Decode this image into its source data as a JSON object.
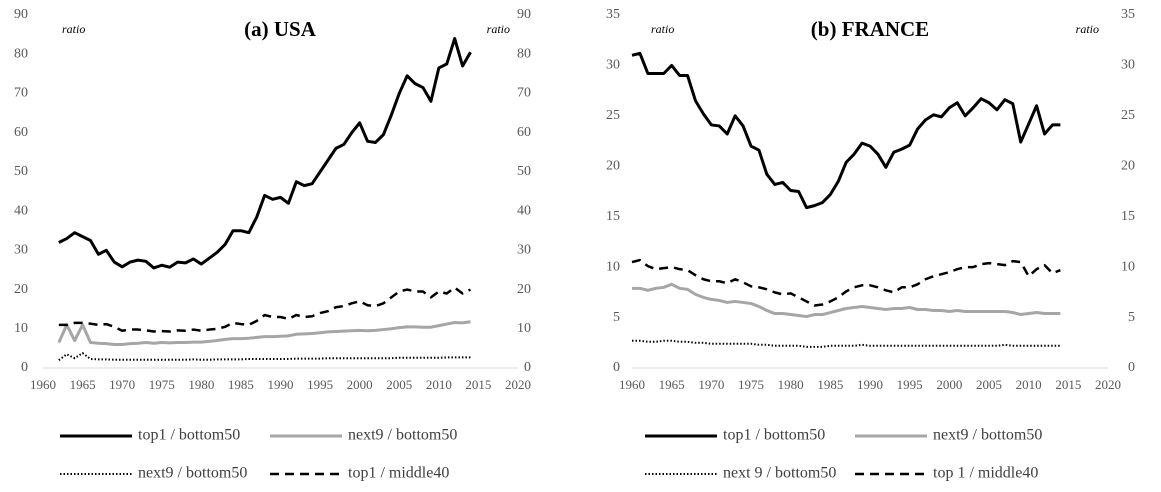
{
  "chart_data": [
    {
      "type": "line",
      "title": "(a) USA",
      "ylabel": "ratio",
      "y2label": "ratio",
      "xlim": [
        1960,
        2020
      ],
      "xticks": [
        1960,
        1965,
        1970,
        1975,
        1980,
        1985,
        1990,
        1995,
        2000,
        2005,
        2010,
        2015,
        2020
      ],
      "ylim": [
        0,
        90
      ],
      "yticks": [
        0,
        10,
        20,
        30,
        40,
        50,
        60,
        70,
        80,
        90
      ],
      "y2lim": [
        0,
        90
      ],
      "y2ticks": [
        0,
        10,
        20,
        30,
        40,
        50,
        60,
        70,
        80,
        90
      ],
      "x": [
        1962,
        1963,
        1964,
        1965,
        1966,
        1967,
        1968,
        1969,
        1970,
        1971,
        1972,
        1973,
        1974,
        1975,
        1976,
        1977,
        1978,
        1979,
        1980,
        1981,
        1982,
        1983,
        1984,
        1985,
        1986,
        1987,
        1988,
        1989,
        1990,
        1991,
        1992,
        1993,
        1994,
        1995,
        1996,
        1997,
        1998,
        1999,
        2000,
        2001,
        2002,
        2003,
        2004,
        2005,
        2006,
        2007,
        2008,
        2009,
        2010,
        2011,
        2012,
        2013,
        2014
      ],
      "series": [
        {
          "name": "top1 / bottom50",
          "color": "#000000",
          "line_style": "solid",
          "values": [
            32,
            33,
            34.5,
            33.5,
            32.5,
            29,
            30,
            27,
            25.8,
            27,
            27.5,
            27.2,
            25.5,
            26.2,
            25.7,
            27,
            26.8,
            27.8,
            26.5,
            28,
            29.5,
            31.5,
            35,
            35,
            34.5,
            38.5,
            44,
            43,
            43.5,
            42,
            47.5,
            46.5,
            47,
            50,
            53,
            56,
            57,
            60,
            62.5,
            57.8,
            57.5,
            59.5,
            64.5,
            70,
            74.5,
            72.5,
            71.5,
            68,
            76.5,
            77.5,
            84,
            77,
            80.5
          ]
        },
        {
          "name": "next9 / bottom50",
          "color": "#a6a6a6",
          "line_style": "solid",
          "values": [
            6.5,
            11,
            7,
            11,
            6.5,
            6.3,
            6.2,
            6,
            6,
            6.2,
            6.3,
            6.5,
            6.3,
            6.5,
            6.4,
            6.5,
            6.5,
            6.6,
            6.6,
            6.8,
            7,
            7.3,
            7.5,
            7.5,
            7.6,
            7.8,
            8,
            8,
            8.1,
            8.2,
            8.6,
            8.7,
            8.8,
            9,
            9.2,
            9.3,
            9.4,
            9.5,
            9.6,
            9.5,
            9.6,
            9.8,
            10,
            10.3,
            10.5,
            10.5,
            10.4,
            10.4,
            10.8,
            11.2,
            11.6,
            11.5,
            11.8
          ]
        },
        {
          "name": "next9 / bottom50",
          "color": "#000000",
          "line_style": "dotted",
          "values": [
            2,
            3.5,
            2.5,
            3.8,
            2.3,
            2.2,
            2.2,
            2.1,
            2.1,
            2.1,
            2.1,
            2.1,
            2.1,
            2.1,
            2.1,
            2.1,
            2.1,
            2.2,
            2.1,
            2.1,
            2.2,
            2.2,
            2.2,
            2.2,
            2.3,
            2.3,
            2.3,
            2.3,
            2.3,
            2.3,
            2.4,
            2.4,
            2.4,
            2.4,
            2.5,
            2.5,
            2.5,
            2.5,
            2.5,
            2.5,
            2.5,
            2.5,
            2.5,
            2.6,
            2.6,
            2.6,
            2.6,
            2.6,
            2.6,
            2.7,
            2.7,
            2.7,
            2.7
          ]
        },
        {
          "name": "top1 / middle40",
          "color": "#000000",
          "line_style": "dashed",
          "values": [
            11,
            11,
            11.5,
            11.5,
            11.3,
            11,
            11.2,
            10.5,
            9.5,
            9.8,
            9.8,
            9.6,
            9.3,
            9.4,
            9.3,
            9.6,
            9.5,
            9.8,
            9.5,
            9.8,
            10,
            10.5,
            11.5,
            11.2,
            11,
            12,
            13.5,
            13,
            13,
            12.5,
            13.5,
            13,
            13.2,
            14,
            14.5,
            15.5,
            15.8,
            16.5,
            17,
            16,
            15.8,
            16.5,
            18,
            19.5,
            20,
            19.5,
            19.5,
            18,
            19.5,
            19,
            20.5,
            19,
            20
          ]
        }
      ]
    },
    {
      "type": "line",
      "title": "(b) FRANCE",
      "ylabel": "ratio",
      "y2label": "ratio",
      "xlim": [
        1960,
        2020
      ],
      "xticks": [
        1960,
        1965,
        1970,
        1975,
        1980,
        1985,
        1990,
        1995,
        2000,
        2005,
        2010,
        2015,
        2020
      ],
      "ylim": [
        0,
        35
      ],
      "yticks": [
        0,
        5,
        10,
        15,
        20,
        25,
        30,
        35
      ],
      "y2lim": [
        0,
        35
      ],
      "y2ticks": [
        0,
        5,
        10,
        15,
        20,
        25,
        30,
        35
      ],
      "x": [
        1960,
        1961,
        1962,
        1963,
        1964,
        1965,
        1966,
        1967,
        1968,
        1969,
        1970,
        1971,
        1972,
        1973,
        1974,
        1975,
        1976,
        1977,
        1978,
        1979,
        1980,
        1981,
        1982,
        1983,
        1984,
        1985,
        1986,
        1987,
        1988,
        1989,
        1990,
        1991,
        1992,
        1993,
        1994,
        1995,
        1996,
        1997,
        1998,
        1999,
        2000,
        2001,
        2002,
        2003,
        2004,
        2005,
        2006,
        2007,
        2008,
        2009,
        2010,
        2011,
        2012,
        2013,
        2014
      ],
      "series": [
        {
          "name": "top1 / bottom50",
          "color": "#000000",
          "line_style": "solid",
          "values": [
            31,
            31.2,
            29.2,
            29.2,
            29.2,
            30,
            29,
            29,
            26.5,
            25.2,
            24.1,
            24,
            23.2,
            25,
            24,
            22,
            21.6,
            19.2,
            18.2,
            18.4,
            17.6,
            17.5,
            15.9,
            16.1,
            16.4,
            17.2,
            18.5,
            20.4,
            21.2,
            22.3,
            22,
            21.2,
            19.9,
            21.4,
            21.7,
            22.1,
            23.7,
            24.6,
            25.1,
            24.9,
            25.8,
            26.3,
            25,
            25.8,
            26.7,
            26.3,
            25.6,
            26.6,
            26.2,
            22.4,
            24.2,
            26,
            23.2,
            24.1,
            24.1
          ]
        },
        {
          "name": "next9 / bottom50",
          "color": "#a6a6a6",
          "line_style": "solid",
          "values": [
            7.9,
            7.9,
            7.7,
            7.9,
            8,
            8.3,
            7.9,
            7.8,
            7.3,
            7,
            6.8,
            6.7,
            6.5,
            6.6,
            6.5,
            6.4,
            6.1,
            5.7,
            5.4,
            5.4,
            5.3,
            5.2,
            5.1,
            5.3,
            5.3,
            5.5,
            5.7,
            5.9,
            6,
            6.1,
            6,
            5.9,
            5.8,
            5.9,
            5.9,
            6,
            5.8,
            5.8,
            5.7,
            5.7,
            5.6,
            5.7,
            5.6,
            5.6,
            5.6,
            5.6,
            5.6,
            5.6,
            5.5,
            5.3,
            5.4,
            5.5,
            5.4,
            5.4,
            5.4
          ]
        },
        {
          "name": "next 9 / bottom50",
          "color": "#000000",
          "line_style": "dotted",
          "values": [
            2.7,
            2.7,
            2.6,
            2.6,
            2.7,
            2.7,
            2.6,
            2.6,
            2.5,
            2.5,
            2.4,
            2.4,
            2.4,
            2.4,
            2.4,
            2.4,
            2.3,
            2.3,
            2.2,
            2.2,
            2.2,
            2.2,
            2.1,
            2.1,
            2.1,
            2.2,
            2.2,
            2.2,
            2.2,
            2.3,
            2.2,
            2.2,
            2.2,
            2.2,
            2.2,
            2.2,
            2.2,
            2.2,
            2.2,
            2.2,
            2.2,
            2.2,
            2.2,
            2.2,
            2.2,
            2.2,
            2.2,
            2.3,
            2.2,
            2.2,
            2.2,
            2.2,
            2.2,
            2.2,
            2.2
          ]
        },
        {
          "name": "top 1 / middle40",
          "color": "#000000",
          "line_style": "dashed",
          "values": [
            10.5,
            10.7,
            10.1,
            9.8,
            9.9,
            10,
            9.8,
            9.7,
            9.2,
            8.8,
            8.6,
            8.6,
            8.4,
            8.8,
            8.5,
            8.1,
            8,
            7.8,
            7.5,
            7.3,
            7.4,
            7,
            6.6,
            6.2,
            6.3,
            6.6,
            7,
            7.6,
            8,
            8.2,
            8.2,
            8,
            7.7,
            7.5,
            8,
            8,
            8.3,
            8.8,
            9.1,
            9.3,
            9.5,
            9.8,
            10,
            10,
            10.3,
            10.4,
            10.3,
            10.2,
            10.6,
            10.5,
            9.1,
            9.8,
            10.2,
            9.4,
            9.7
          ]
        }
      ]
    }
  ]
}
